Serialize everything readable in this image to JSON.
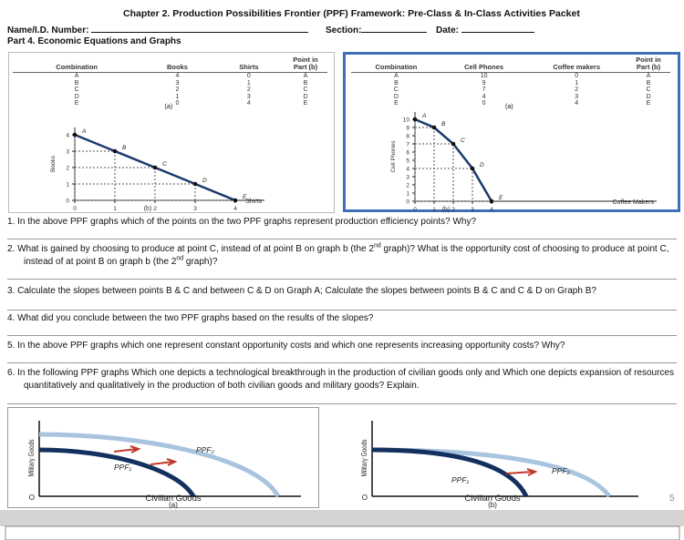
{
  "header": {
    "title": "Chapter  2.  Production Possibilities Frontier (PPF) Framework: Pre-Class & In-Class Activities Packet",
    "name_label": "Name/I.D. Number:",
    "section_label": "Section:",
    "date_label": "Date:",
    "part": "Part 4. Economic Equations and Graphs"
  },
  "panel_left": {
    "table": {
      "columns": [
        "Combination",
        "Books",
        "Shirts",
        "Point in Part (b)"
      ],
      "rows": [
        [
          "A",
          4,
          0,
          "A"
        ],
        [
          "B",
          3,
          1,
          "B"
        ],
        [
          "C",
          2,
          2,
          "C"
        ],
        [
          "D",
          1,
          3,
          "D"
        ],
        [
          "E",
          0,
          4,
          "E"
        ]
      ]
    },
    "table_caption": "(a)",
    "graph": {
      "ylabel": "Books",
      "xlabel": "Shirts",
      "yticks": [
        0,
        1,
        2,
        3,
        4
      ],
      "xticks": [
        0,
        1,
        2,
        3,
        4
      ],
      "caption": "(b)"
    }
  },
  "panel_right": {
    "table": {
      "columns": [
        "Combination",
        "Cell Phones",
        "Coffee makers",
        "Point in Part (b)"
      ],
      "rows": [
        [
          "A",
          10,
          0,
          "A"
        ],
        [
          "B",
          9,
          1,
          "B"
        ],
        [
          "C",
          7,
          2,
          "C"
        ],
        [
          "D",
          4,
          3,
          "D"
        ],
        [
          "E",
          0,
          4,
          "E"
        ]
      ]
    },
    "table_caption": "(a)",
    "graph": {
      "ylabel": "Cell Phones",
      "xlabel": "Coffee Makers",
      "yticks": [
        0,
        1,
        2,
        3,
        4,
        5,
        6,
        7,
        8,
        9,
        10
      ],
      "xticks": [
        0,
        1,
        2,
        3,
        4
      ],
      "caption": "(b)"
    }
  },
  "questions": [
    [
      "1. In the above  PPF graphs which of the points on the two PPF graphs represent production efficiency points? Why?"
    ],
    [
      "2. What is gained by choosing to produce at point C, instead of at point B on graph b (the 2",
      "nd",
      " graph)? What is the opportunity cost of choosing to produce at point C, instead of at point B on graph b (the  2",
      "nd",
      " graph)?"
    ],
    [
      "3. Calculate  the slopes between  points B  & C and between C & D on Graph A; Calculate  the slopes between points B & C and C & D on Graph B?"
    ],
    [
      "4. What did you conclude between the two PPF  graphs based on the results of  the slopes?"
    ],
    [
      "5. In the above  PPF graphs  which one represent constant opportunity costs  and which one represents increasing opportunity costs? Why?"
    ],
    [
      "6. In the following  PPF graphs  Which one depicts a technological breakthrough in the production of  civilian goods  only and Which one depicts expansion of resources quantitatively and qualitatively in the production of both civilian goods and  military  goods? Explain."
    ]
  ],
  "bottom_graphs": [
    {
      "ylabel": "Military Goods",
      "xlabel": "Civilian Goods",
      "origin": "O",
      "ppf1": "PPF₁",
      "ppf2": "PPF₂",
      "caption": "(a)"
    },
    {
      "ylabel": "Military Goods",
      "xlabel": "Civilian Goods",
      "origin": "O",
      "ppf1": "PPF₁",
      "ppf2": "PPF₂",
      "caption": "(b)"
    }
  ],
  "page_number": "5"
}
